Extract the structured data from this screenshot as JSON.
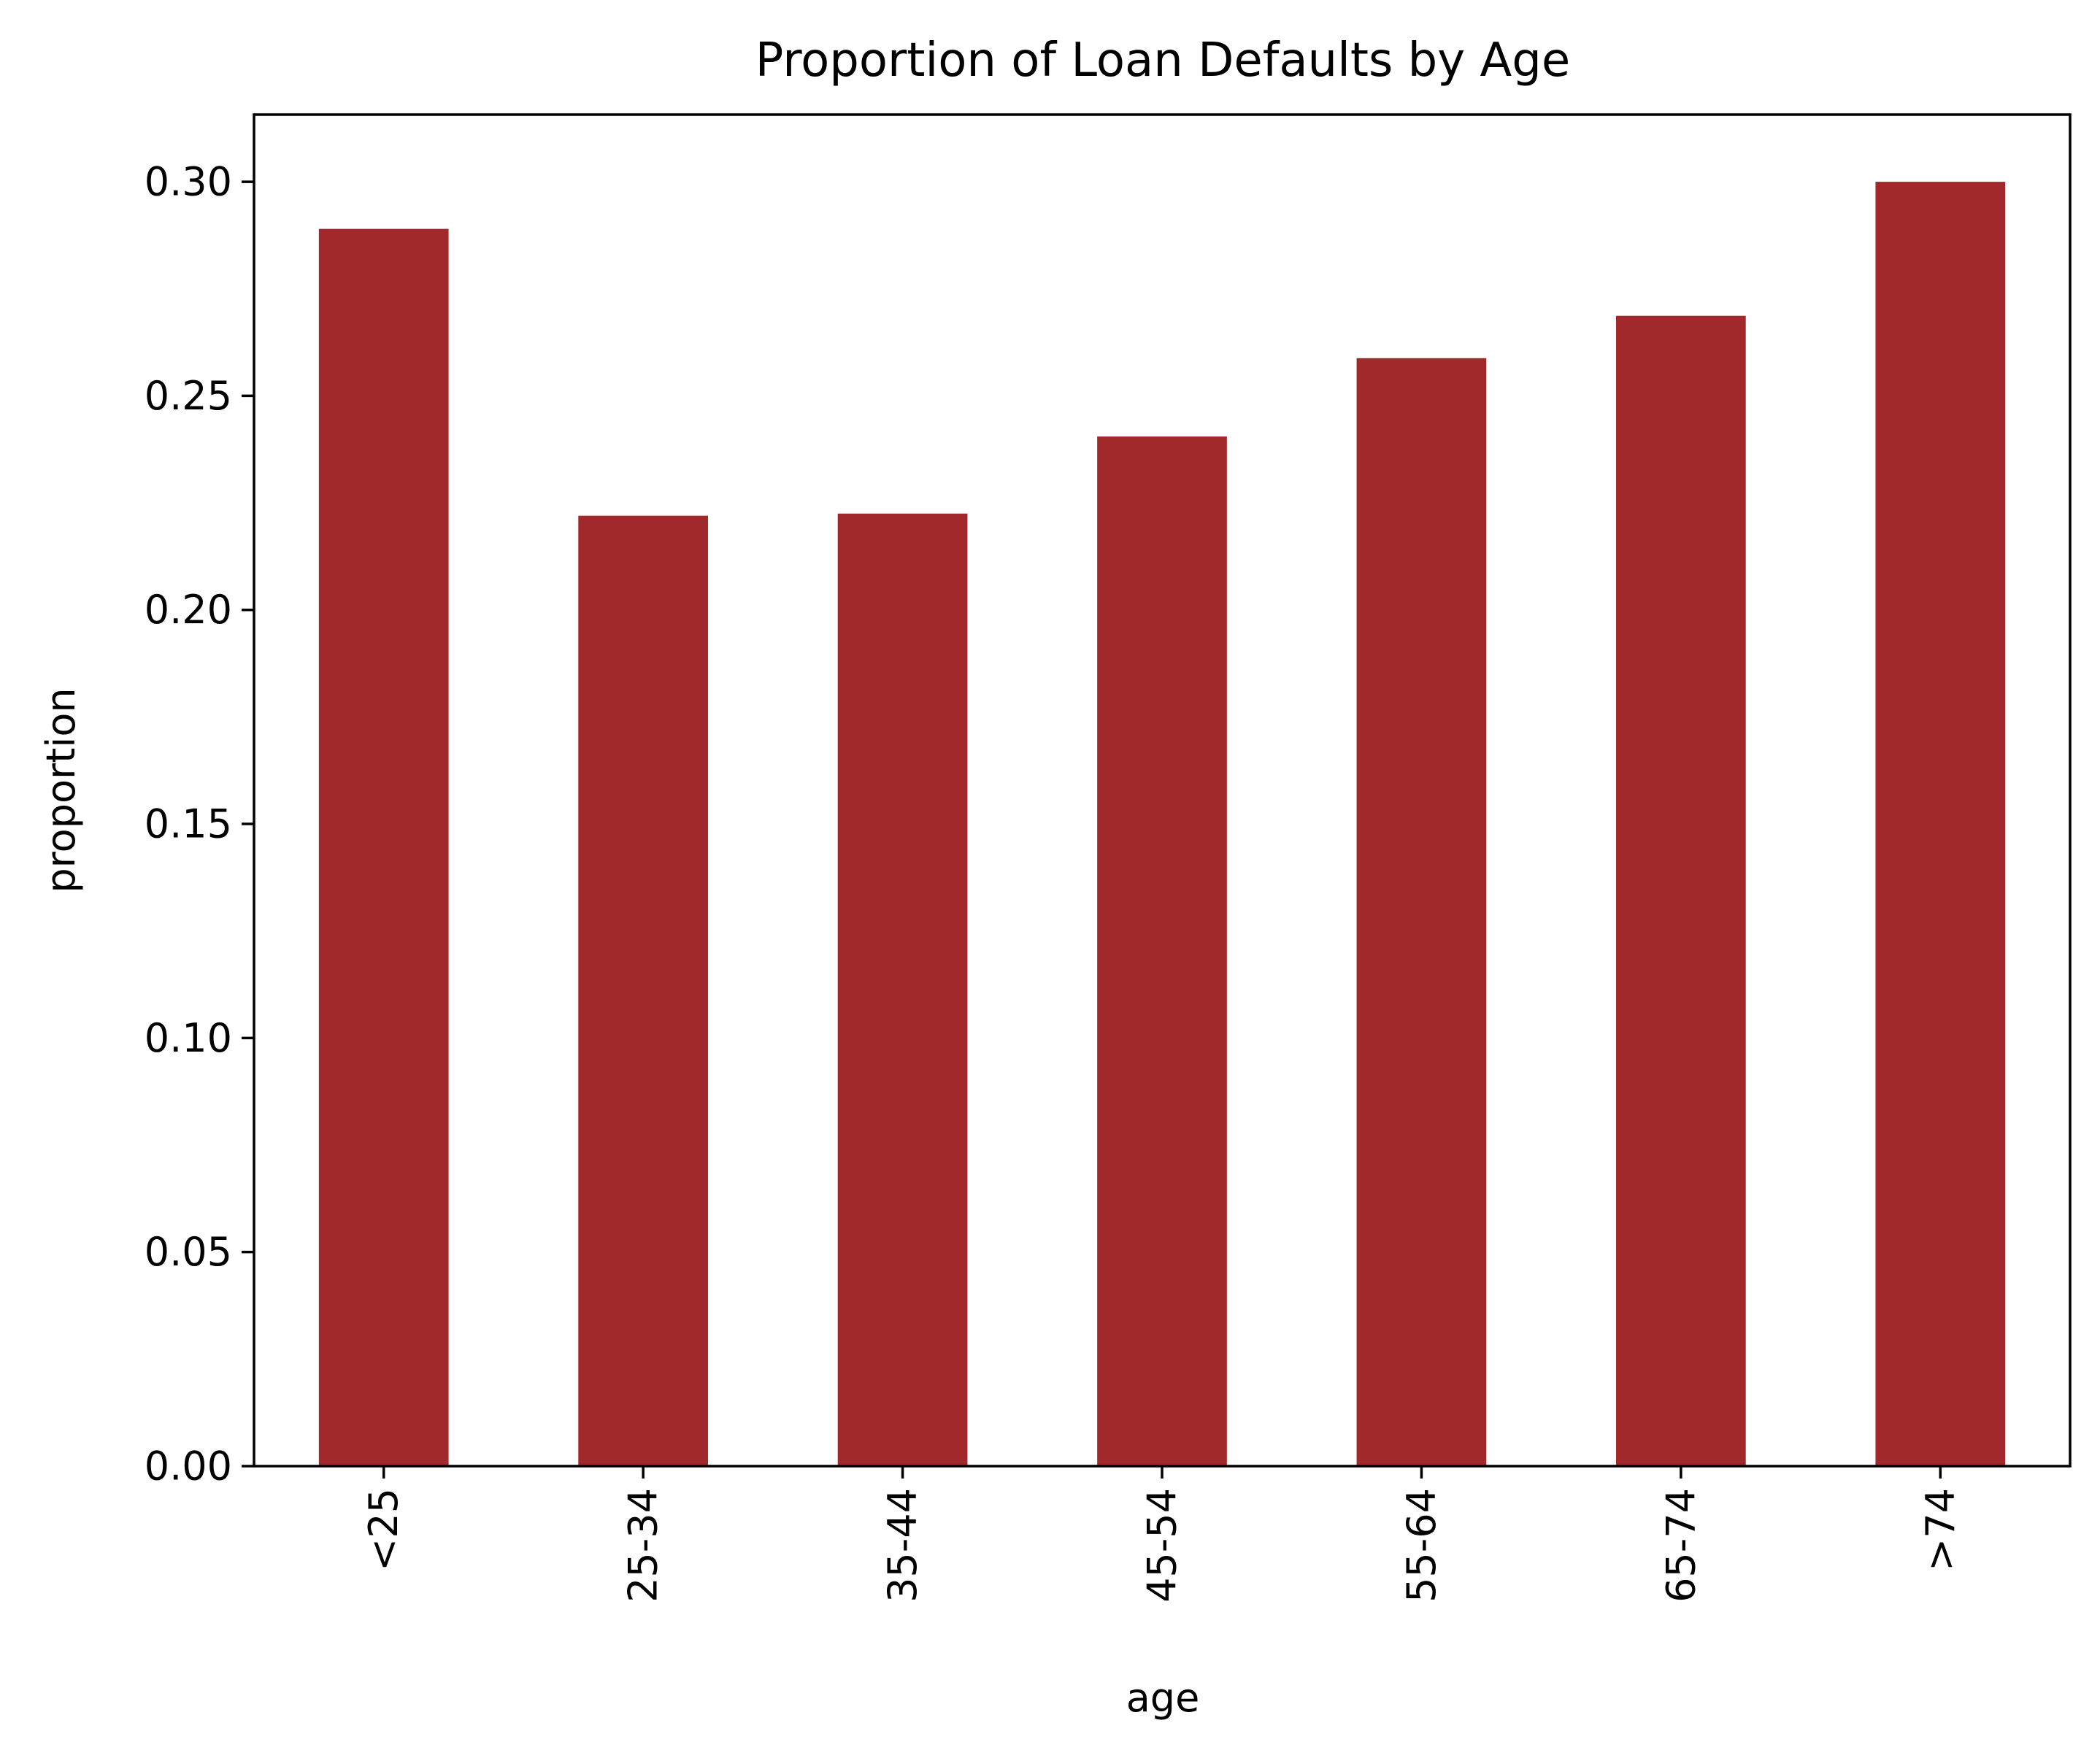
{
  "chart_data": {
    "type": "bar",
    "title": "Proportion of Loan Defaults by Age",
    "xlabel": "age",
    "ylabel": "proportion",
    "categories": [
      "<25",
      "25-34",
      "35-44",
      "45-54",
      "55-64",
      "65-74",
      ">74"
    ],
    "values": [
      0.289,
      0.222,
      0.2225,
      0.2405,
      0.2588,
      0.2687,
      0.3
    ],
    "ylim": [
      0,
      0.3157
    ],
    "yticks": [
      "0.00",
      "0.05",
      "0.10",
      "0.15",
      "0.20",
      "0.25",
      "0.30"
    ],
    "grid": false,
    "legend": "none",
    "bar_color": "#a1292b"
  }
}
